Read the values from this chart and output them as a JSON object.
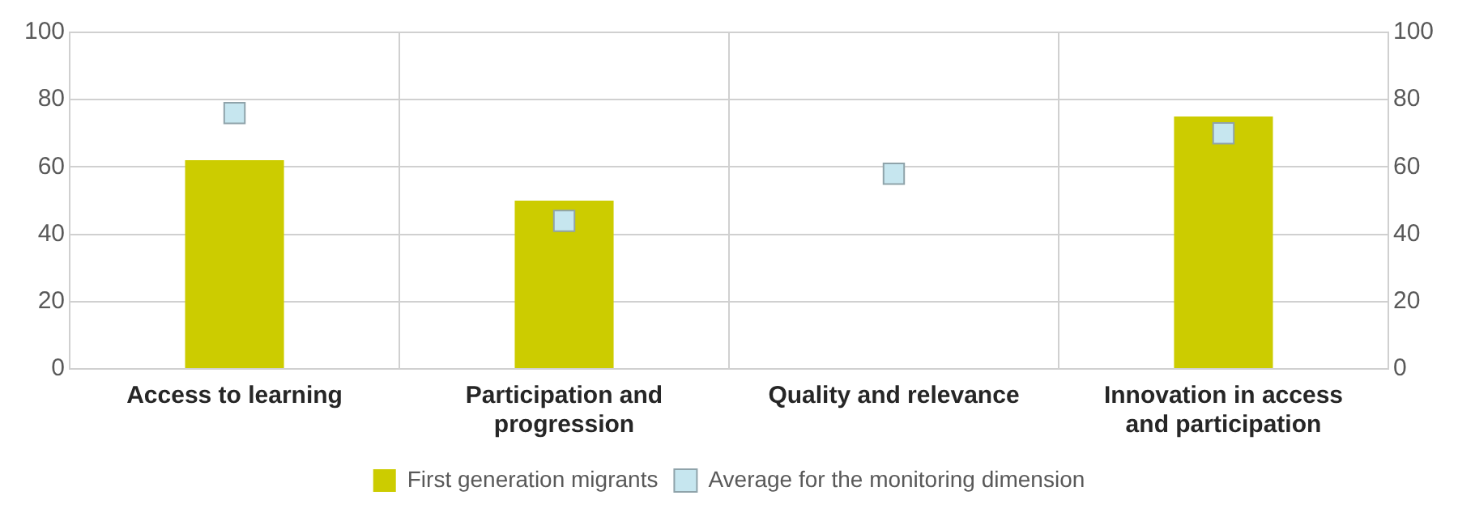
{
  "chart_data": {
    "type": "bar",
    "categories": [
      "Access to learning",
      "Participation and progression",
      "Quality and relevance",
      "Innovation in access and participation"
    ],
    "series": [
      {
        "name": "First generation migrants",
        "color": "#cccc00",
        "values": [
          62,
          50,
          null,
          75
        ]
      },
      {
        "name": "Average for the monitoring dimension",
        "type": "scatter",
        "color": "#c6e6ef",
        "values": [
          76,
          44,
          58,
          70
        ]
      }
    ],
    "ylim": [
      0,
      100
    ],
    "yticks": [
      0,
      20,
      40,
      60,
      80,
      100
    ],
    "y2lim": [
      0,
      100
    ],
    "y2ticks": [
      0,
      20,
      40,
      60,
      80,
      100
    ],
    "marker": "square",
    "grid": true,
    "legend": "bottom"
  }
}
